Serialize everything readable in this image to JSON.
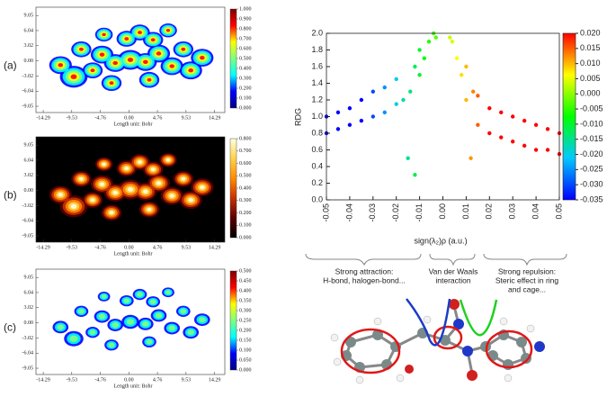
{
  "chart_data": [
    {
      "type": "heatmap",
      "label": "(a)",
      "xlabel": "Length unit: Bohr",
      "background": "#ffffff",
      "colormap": [
        "#00007f",
        "#0000ff",
        "#00ffff",
        "#7fff7f",
        "#ffff00",
        "#ff0000",
        "#7f0000"
      ],
      "xlim": [
        -15.5,
        16
      ],
      "ylim": [
        -10.3,
        10.7
      ],
      "xticks": [
        -14.29,
        -9.53,
        -4.76,
        {
          "value": 0,
          "label": "0.00"
        },
        4.76,
        9.53,
        14.29
      ],
      "yticks": [
        9.05,
        6.04,
        3.02,
        {
          "value": 0,
          "label": "0.00"
        },
        -3.02,
        -6.04,
        -9.05
      ],
      "clim": [
        0,
        1
      ],
      "cticks": [
        {
          "value": 0,
          "label": "0.000"
        },
        {
          "value": 0.1,
          "label": "0.100"
        },
        {
          "value": 0.2,
          "label": "0.200"
        },
        {
          "value": 0.3,
          "label": "0.300"
        },
        {
          "value": 0.4,
          "label": "0.400"
        },
        {
          "value": 0.5,
          "label": "0.500"
        },
        {
          "value": 0.6,
          "label": "0.600"
        },
        {
          "value": 0.7,
          "label": "0.700"
        },
        {
          "value": 0.8,
          "label": "0.800"
        },
        {
          "value": 0.9,
          "label": "0.900"
        },
        {
          "value": 1,
          "label": "1.000"
        }
      ]
    },
    {
      "type": "heatmap",
      "label": "(b)",
      "xlabel": "Length unit: Bohr",
      "background": "#000000",
      "colormap": [
        "#000000",
        "#5a0000",
        "#c83200",
        "#ff8c00",
        "#ffd24a",
        "#ffffe0"
      ],
      "xlim": [
        -15.5,
        16
      ],
      "ylim": [
        -10.3,
        10.7
      ],
      "xticks": [
        -14.29,
        -9.53,
        -4.76,
        {
          "value": 0,
          "label": "0.00"
        },
        4.76,
        9.53,
        14.29
      ],
      "yticks": [
        9.05,
        6.04,
        3.02,
        {
          "value": 0,
          "label": "0.00"
        },
        -3.02,
        -6.04,
        -9.05
      ],
      "clim": [
        0,
        0.8
      ],
      "cticks": [
        {
          "value": 0,
          "label": "0.000"
        },
        {
          "value": 0.1,
          "label": "0.100"
        },
        {
          "value": 0.2,
          "label": "0.200"
        },
        {
          "value": 0.3,
          "label": "0.300"
        },
        {
          "value": 0.4,
          "label": "0.400"
        },
        {
          "value": 0.5,
          "label": "0.500"
        },
        {
          "value": 0.6,
          "label": "0.600"
        },
        {
          "value": 0.7,
          "label": "0.700"
        },
        {
          "value": 0.8,
          "label": "0.800"
        }
      ]
    },
    {
      "type": "heatmap",
      "label": "(c)",
      "xlabel": "Length unit: Bohr",
      "background": "#ffffff",
      "colormap": [
        "#00007f",
        "#0000ff",
        "#00ffff",
        "#7fff7f",
        "#ffff00",
        "#ff0000",
        "#7f0000"
      ],
      "xlim": [
        -15.5,
        16
      ],
      "ylim": [
        -10.3,
        10.7
      ],
      "xticks": [
        -14.29,
        -9.53,
        -4.76,
        {
          "value": 0,
          "label": "0.00"
        },
        4.76,
        9.53,
        14.29
      ],
      "yticks": [
        9.05,
        6.04,
        3.02,
        {
          "value": 0,
          "label": "0.00"
        },
        -3.02,
        -6.04,
        -9.05
      ],
      "clim": [
        0,
        0.5
      ],
      "cticks": [
        {
          "value": 0,
          "label": "0.000"
        },
        {
          "value": 0.05,
          "label": "0.050"
        },
        {
          "value": 0.1,
          "label": "0.100"
        },
        {
          "value": 0.15,
          "label": "0.150"
        },
        {
          "value": 0.2,
          "label": "0.200"
        },
        {
          "value": 0.25,
          "label": "0.250"
        },
        {
          "value": 0.3,
          "label": "0.300"
        },
        {
          "value": 0.35,
          "label": "0.350"
        },
        {
          "value": 0.4,
          "label": "0.400"
        },
        {
          "value": 0.45,
          "label": "0.450"
        },
        {
          "value": 0.5,
          "label": "0.500"
        }
      ]
    },
    {
      "type": "scatter",
      "ylabel": "RDG",
      "xlabel": "sign(λ₂)ρ (a.u.)",
      "colormap": [
        "#0000ff",
        "#00c8ff",
        "#00ff00",
        "#ffff00",
        "#ff0000"
      ],
      "xlim": [
        -0.05,
        0.05
      ],
      "ylim": [
        0,
        2
      ],
      "xticks": [
        -0.05,
        -0.04,
        -0.03,
        -0.02,
        -0.01,
        {
          "value": 0,
          "label": "0.00"
        },
        0.01,
        0.02,
        0.03,
        0.04,
        0.05
      ],
      "yticks": [
        {
          "value": 0,
          "label": "0.0"
        },
        0.2,
        0.4,
        0.6,
        0.8,
        {
          "value": 1,
          "label": "1.0"
        },
        1.2,
        1.4,
        1.6,
        1.8,
        {
          "value": 2,
          "label": "2.0"
        }
      ],
      "clim": [
        -0.035,
        0.02
      ],
      "cticks": [
        {
          "value": 0.02,
          "label": "0.020"
        },
        0.015,
        {
          "value": 0.01,
          "label": "0.010"
        },
        0.005,
        {
          "value": 0,
          "label": "0.000"
        },
        -0.005,
        {
          "value": -0.01,
          "label": "-0.010"
        },
        -0.015,
        {
          "value": -0.02,
          "label": "-0.020"
        },
        -0.025,
        {
          "value": -0.03,
          "label": "-0.030"
        },
        -0.035
      ],
      "x": [
        -0.05,
        -0.05,
        -0.045,
        -0.045,
        -0.04,
        -0.04,
        -0.035,
        -0.035,
        -0.03,
        -0.03,
        -0.025,
        -0.025,
        -0.02,
        -0.02,
        -0.017,
        -0.015,
        -0.014,
        -0.012,
        -0.012,
        -0.01,
        -0.01,
        -0.008,
        -0.006,
        -0.004,
        -0.003,
        0.003,
        0.004,
        0.006,
        0.008,
        0.01,
        0.01,
        0.012,
        0.013,
        0.015,
        0.015,
        0.02,
        0.02,
        0.025,
        0.025,
        0.03,
        0.03,
        0.035,
        0.035,
        0.04,
        0.04,
        0.045,
        0.045,
        0.05,
        0.05
      ],
      "y": [
        0.8,
        1.0,
        0.85,
        1.05,
        0.9,
        1.1,
        0.95,
        1.2,
        1.0,
        1.3,
        1.05,
        1.35,
        1.15,
        1.45,
        1.2,
        0.5,
        1.3,
        0.3,
        1.6,
        1.5,
        1.8,
        1.7,
        1.9,
        2.0,
        1.95,
        1.95,
        1.9,
        1.7,
        1.5,
        1.2,
        1.6,
        0.5,
        1.3,
        0.9,
        1.25,
        0.8,
        1.1,
        0.75,
        1.05,
        0.7,
        1.0,
        0.65,
        0.95,
        0.6,
        0.9,
        0.6,
        0.85,
        0.55,
        0.8
      ],
      "annotations": [
        [
          "Strong attraction:",
          "H-bond, halogen-bond..."
        ],
        [
          "Van der Waals",
          "interaction"
        ],
        [
          "Strong repulsion:",
          "Steric effect in ring",
          "and cage..."
        ]
      ]
    }
  ]
}
